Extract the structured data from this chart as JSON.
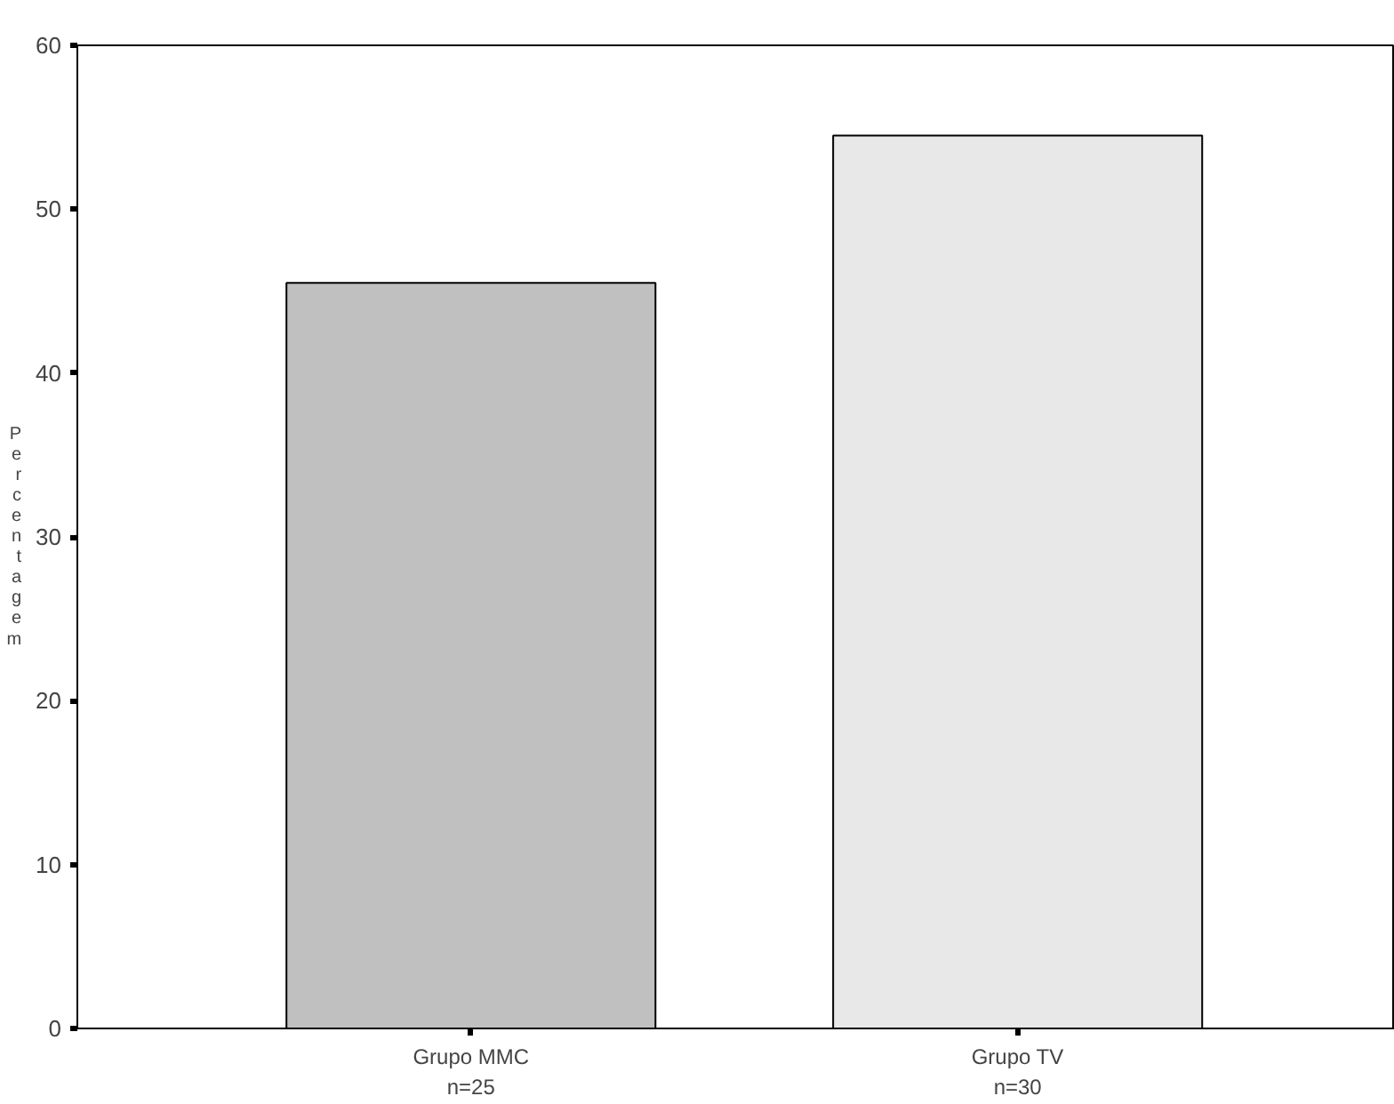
{
  "chart_data": {
    "type": "bar",
    "ylabel": "Percentagem",
    "categories": [
      "Grupo MMC\nn=25",
      "Grupo TV\nn=30"
    ],
    "values": [
      45.5,
      54.5
    ],
    "colors": [
      "#c0c0c0",
      "#e8e8e8"
    ],
    "ylim": [
      0,
      60
    ],
    "yticks": [
      0,
      10,
      20,
      30,
      40,
      50,
      60
    ],
    "grid": false
  }
}
